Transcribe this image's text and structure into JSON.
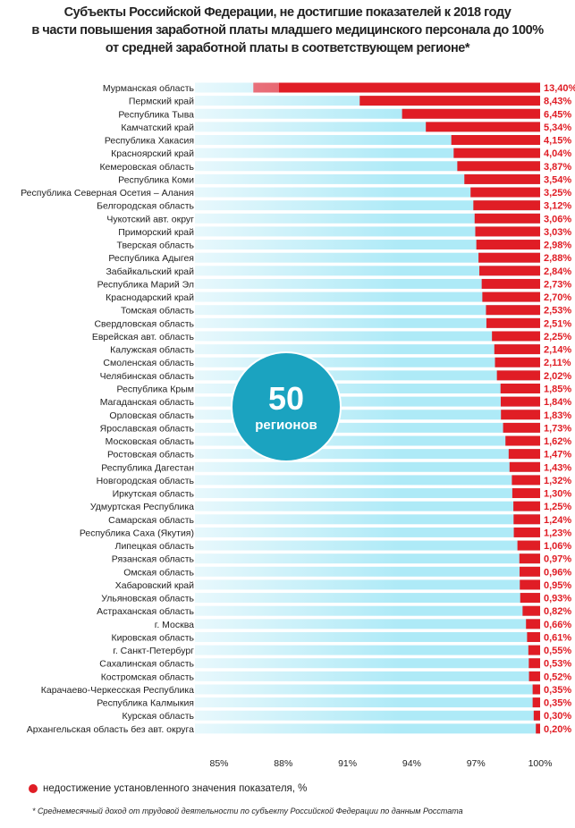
{
  "chart_data": {
    "type": "bar",
    "orientation": "horizontal",
    "title": [
      "Субъекты Российской Федерации, не достигшие показателей к 2018 году",
      "в части повышения заработной платы младшего медицинского персонала до 100%",
      "от средней заработной платы в соответствующем регионе*"
    ],
    "categories": [
      "Мурманская область",
      "Пермский край",
      "Республика Тыва",
      "Камчатский край",
      "Республика Хакасия",
      "Красноярский край",
      "Кемеровская область",
      "Республика Коми",
      "Республика Северная Осетия – Алания",
      "Белгородская область",
      "Чукотский авт. округ",
      "Приморский край",
      "Тверская область",
      "Республика Адыгея",
      "Забайкальский край",
      "Республика Марий Эл",
      "Краснодарский край",
      "Томская область",
      "Свердловская область",
      "Еврейская авт. область",
      "Калужская область",
      "Смоленская область",
      "Челябинская область",
      "Республика Крым",
      "Магаданская область",
      "Орловская область",
      "Ярославская область",
      "Московская область",
      "Ростовская область",
      "Республика Дагестан",
      "Новгородская область",
      "Иркутская область",
      "Удмуртская Республика",
      "Самарская область",
      "Республика Саха (Якутия)",
      "Липецкая область",
      "Рязанская область",
      "Омская область",
      "Хабаровский край",
      "Ульяновская область",
      "Астраханская область",
      "г. Москва",
      "Кировская область",
      "г. Санкт-Петербург",
      "Сахалинская область",
      "Костромская область",
      "Карачаево-Черкесская Республика",
      "Республика Калмыкия",
      "Курская область",
      "Архангельская область без авт. округа"
    ],
    "values": [
      13.4,
      8.43,
      6.45,
      5.34,
      4.15,
      4.04,
      3.87,
      3.54,
      3.25,
      3.12,
      3.06,
      3.03,
      2.98,
      2.88,
      2.84,
      2.73,
      2.7,
      2.53,
      2.51,
      2.25,
      2.14,
      2.11,
      2.02,
      1.85,
      1.84,
      1.83,
      1.73,
      1.62,
      1.47,
      1.43,
      1.32,
      1.3,
      1.25,
      1.24,
      1.23,
      1.06,
      0.97,
      0.96,
      0.95,
      0.93,
      0.82,
      0.66,
      0.61,
      0.55,
      0.53,
      0.52,
      0.35,
      0.35,
      0.3,
      0.2
    ],
    "value_labels": [
      "13,40%",
      "8,43%",
      "6,45%",
      "5,34%",
      "4,15%",
      "4,04%",
      "3,87%",
      "3,54%",
      "3,25%",
      "3,12%",
      "3,06%",
      "3,03%",
      "2,98%",
      "2,88%",
      "2,84%",
      "2,73%",
      "2,70%",
      "2,53%",
      "2,51%",
      "2,25%",
      "2,14%",
      "2,11%",
      "2,02%",
      "1,85%",
      "1,84%",
      "1,83%",
      "1,73%",
      "1,62%",
      "1,47%",
      "1,43%",
      "1,32%",
      "1,30%",
      "1,25%",
      "1,24%",
      "1,23%",
      "1,06%",
      "0,97%",
      "0,96%",
      "0,95%",
      "0,93%",
      "0,82%",
      "0,66%",
      "0,61%",
      "0,55%",
      "0,53%",
      "0,52%",
      "0,35%",
      "0,35%",
      "0,30%",
      "0,20%"
    ],
    "xlim": [
      85,
      100
    ],
    "xticks": [
      "85%",
      "88%",
      "91%",
      "94%",
      "97%",
      "100%"
    ],
    "xtick_values": [
      85,
      88,
      91,
      94,
      97,
      100
    ],
    "grid": false,
    "legend": {
      "position": "bottom-left",
      "label": "недостижение установленного значения показателя, %"
    },
    "colors": {
      "shortfall": "#e01d25",
      "achieved": "#aeeaf7",
      "label": "#e01d25",
      "badge": "#1ba3c0"
    },
    "badge": {
      "number": "50",
      "label": "регионов"
    },
    "footnote": "* Среднемесячный доход от трудовой деятельности по субъекту Российской Федерации по данным Росстата"
  }
}
